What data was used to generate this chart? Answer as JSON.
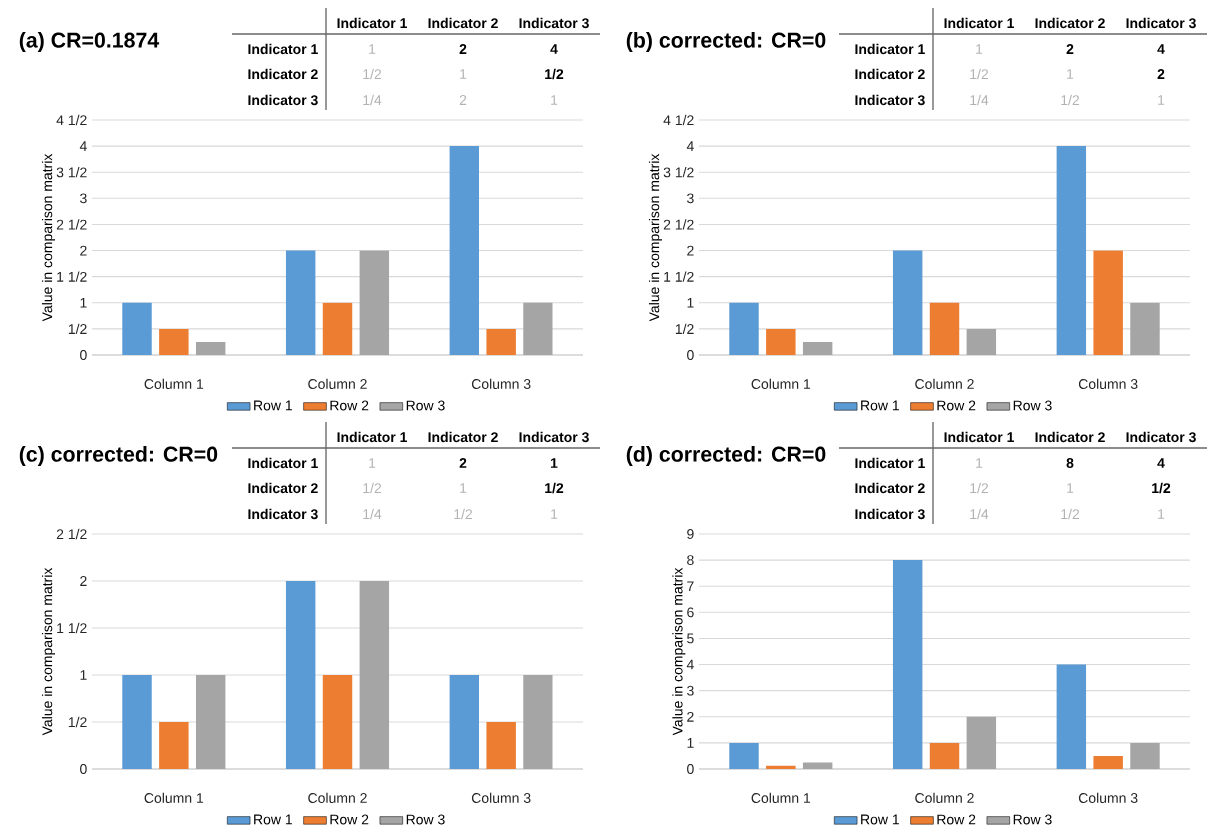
{
  "chart_data": [
    {
      "type": "bar",
      "title": "(a) CR=0.1874",
      "ylabel": "Value in comparison matrix",
      "categories": [
        "Column 1",
        "Column 2",
        "Column 3"
      ],
      "series": [
        {
          "name": "Row 1",
          "color": "#5b9bd5",
          "values": [
            1,
            2,
            4
          ]
        },
        {
          "name": "Row 2",
          "color": "#ed7d31",
          "values": [
            0.5,
            1,
            0.5
          ]
        },
        {
          "name": "Row 3",
          "color": "#a5a5a5",
          "values": [
            0.25,
            2,
            1
          ]
        }
      ],
      "ylim": [
        0,
        4.5
      ],
      "yticks": [
        0,
        {
          "value": 0.5,
          "label": "1/2"
        },
        1,
        {
          "value": 1.5,
          "label": "1 1/2"
        },
        2,
        {
          "value": 2.5,
          "label": "2 1/2"
        },
        3,
        {
          "value": 3.5,
          "label": "3 1/2"
        },
        4,
        {
          "value": 4.5,
          "label": "4 1/2"
        }
      ],
      "grid": "y",
      "legend": "bottom"
    },
    {
      "type": "other",
      "categories": [
        "Indicator 1",
        "Indicator 2",
        "Indicator 3"
      ],
      "y_categories": [
        "Indicator 1",
        "Indicator 2",
        "Indicator 3"
      ],
      "cell_labels": [
        [
          "1",
          "2",
          "4"
        ],
        [
          "1/2",
          "1",
          "1/2"
        ],
        [
          "1/4",
          "2",
          "1"
        ]
      ]
    },
    {
      "type": "bar",
      "title": "(b) corrected: CR=0",
      "ylabel": "Value in comparison matrix",
      "categories": [
        "Column 1",
        "Column 2",
        "Column 3"
      ],
      "series": [
        {
          "name": "Row 1",
          "color": "#5b9bd5",
          "values": [
            1,
            2,
            4
          ]
        },
        {
          "name": "Row 2",
          "color": "#ed7d31",
          "values": [
            0.5,
            1,
            2
          ]
        },
        {
          "name": "Row 3",
          "color": "#a5a5a5",
          "values": [
            0.25,
            0.5,
            1
          ]
        }
      ],
      "ylim": [
        0,
        4.5
      ],
      "yticks": [
        0,
        {
          "value": 0.5,
          "label": "1/2"
        },
        1,
        {
          "value": 1.5,
          "label": "1 1/2"
        },
        2,
        {
          "value": 2.5,
          "label": "2 1/2"
        },
        3,
        {
          "value": 3.5,
          "label": "3 1/2"
        },
        4,
        {
          "value": 4.5,
          "label": "4 1/2"
        }
      ],
      "grid": "y",
      "legend": "bottom"
    },
    {
      "type": "other",
      "categories": [
        "Indicator 1",
        "Indicator 2",
        "Indicator 3"
      ],
      "y_categories": [
        "Indicator 1",
        "Indicator 2",
        "Indicator 3"
      ],
      "cell_labels": [
        [
          "1",
          "2",
          "4"
        ],
        [
          "1/2",
          "1",
          "2"
        ],
        [
          "1/4",
          "1/2",
          "1"
        ]
      ]
    },
    {
      "type": "bar",
      "title": "(c) corrected: CR=0",
      "ylabel": "Value in comparison matrix",
      "categories": [
        "Column 1",
        "Column 2",
        "Column 3"
      ],
      "series": [
        {
          "name": "Row 1",
          "color": "#5b9bd5",
          "values": [
            1,
            2,
            1
          ]
        },
        {
          "name": "Row 2",
          "color": "#ed7d31",
          "values": [
            0.5,
            1,
            0.5
          ]
        },
        {
          "name": "Row 3",
          "color": "#a5a5a5",
          "values": [
            1,
            2,
            1
          ]
        }
      ],
      "ylim": [
        0,
        2.5
      ],
      "yticks": [
        0,
        {
          "value": 0.5,
          "label": "1/2"
        },
        1,
        {
          "value": 1.5,
          "label": "1 1/2"
        },
        2,
        {
          "value": 2.5,
          "label": "2 1/2"
        }
      ],
      "grid": "y",
      "legend": "bottom"
    },
    {
      "type": "other",
      "categories": [
        "Indicator 1",
        "Indicator 2",
        "Indicator 3"
      ],
      "y_categories": [
        "Indicator 1",
        "Indicator 2",
        "Indicator 3"
      ],
      "cell_labels": [
        [
          "1",
          "2",
          "1"
        ],
        [
          "1/2",
          "1",
          "1/2"
        ],
        [
          "1/4",
          "1/2",
          "1"
        ]
      ]
    },
    {
      "type": "bar",
      "title": "(d) corrected: CR=0",
      "ylabel": "Value in comparison matrix",
      "categories": [
        "Column 1",
        "Column 2",
        "Column 3"
      ],
      "series": [
        {
          "name": "Row 1",
          "color": "#5b9bd5",
          "values": [
            1,
            8,
            4
          ]
        },
        {
          "name": "Row 2",
          "color": "#ed7d31",
          "values": [
            0.125,
            1,
            0.5
          ]
        },
        {
          "name": "Row 3",
          "color": "#a5a5a5",
          "values": [
            0.25,
            2,
            1
          ]
        }
      ],
      "ylim": [
        0,
        9
      ],
      "yticks": [
        0,
        1,
        2,
        3,
        4,
        5,
        6,
        7,
        8,
        9
      ],
      "grid": "y",
      "legend": "bottom"
    },
    {
      "type": "other",
      "categories": [
        "Indicator 1",
        "Indicator 2",
        "Indicator 3"
      ],
      "y_categories": [
        "Indicator 1",
        "Indicator 2",
        "Indicator 3"
      ],
      "cell_labels": [
        [
          "1",
          "8",
          "4"
        ],
        [
          "1/2",
          "1",
          "1/2"
        ],
        [
          "1/4",
          "1/2",
          "1"
        ]
      ]
    }
  ]
}
